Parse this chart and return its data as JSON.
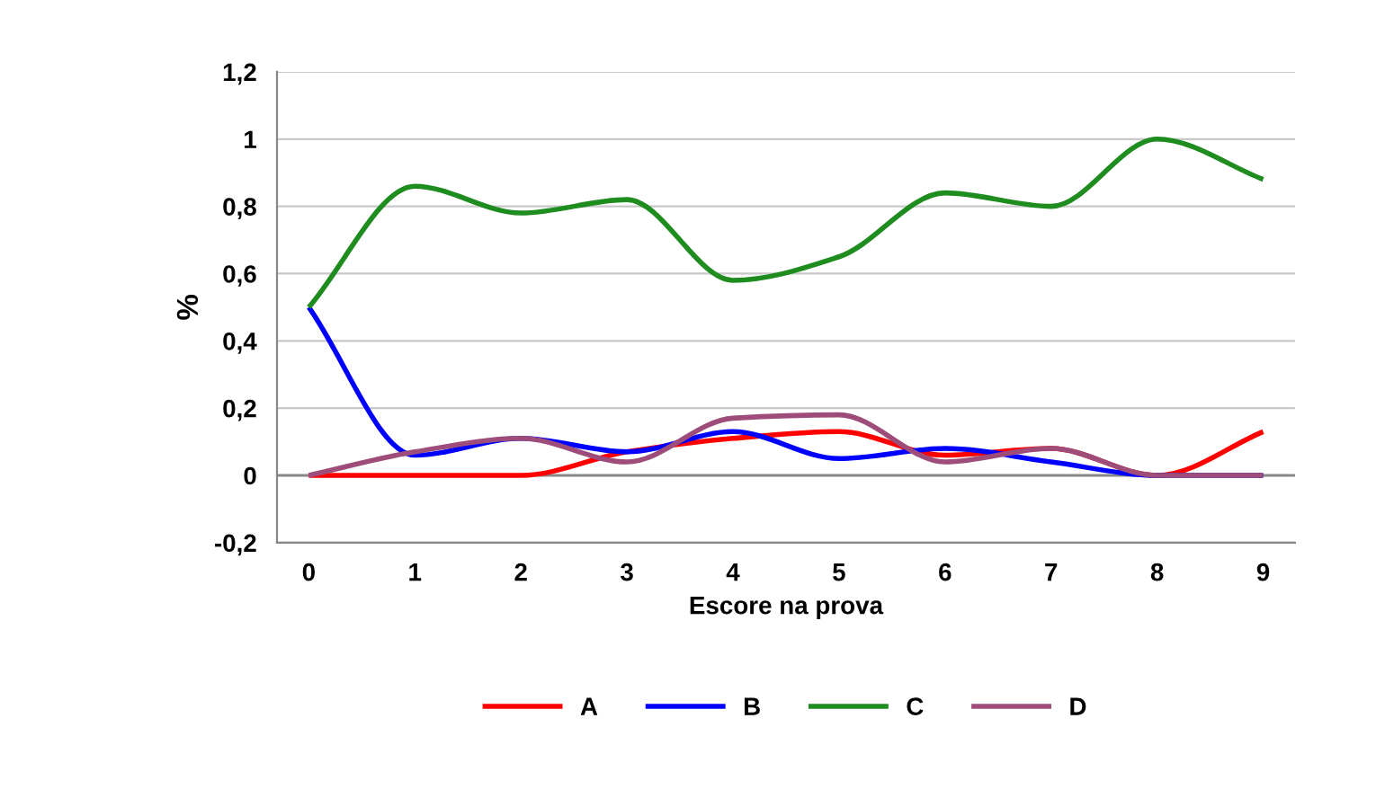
{
  "chart_data": {
    "type": "line",
    "xlabel": "Escore na prova",
    "ylabel": "%",
    "categories": [
      "0",
      "1",
      "2",
      "3",
      "4",
      "5",
      "6",
      "7",
      "8",
      "9"
    ],
    "series": [
      {
        "name": "A",
        "color": "#ff0000",
        "values": [
          0,
          0,
          0,
          0.07,
          0.11,
          0.13,
          0.06,
          0.08,
          0,
          0.13
        ]
      },
      {
        "name": "B",
        "color": "#0000ff",
        "values": [
          0.5,
          0.06,
          0.11,
          0.07,
          0.13,
          0.05,
          0.08,
          0.04,
          0,
          0
        ]
      },
      {
        "name": "C",
        "color": "#1e8c1e",
        "values": [
          0.5,
          0.86,
          0.78,
          0.82,
          0.58,
          0.65,
          0.84,
          0.8,
          1.0,
          0.88
        ]
      },
      {
        "name": "D",
        "color": "#9e4c7a",
        "values": [
          0,
          0.07,
          0.11,
          0.04,
          0.17,
          0.18,
          0.04,
          0.08,
          0,
          0
        ]
      }
    ],
    "ylim": [
      -0.2,
      1.2
    ],
    "yticks": [
      {
        "value": -0.2,
        "label": "-0,2"
      },
      0,
      {
        "value": 0.2,
        "label": "0,2"
      },
      {
        "value": 0.4,
        "label": "0,4"
      },
      {
        "value": 0.6,
        "label": "0,6"
      },
      {
        "value": 0.8,
        "label": "0,8"
      },
      1,
      {
        "value": 1.2,
        "label": "1,2"
      }
    ],
    "grid": "y",
    "legend": "bottom",
    "marker": "none",
    "line_style": "solid"
  }
}
